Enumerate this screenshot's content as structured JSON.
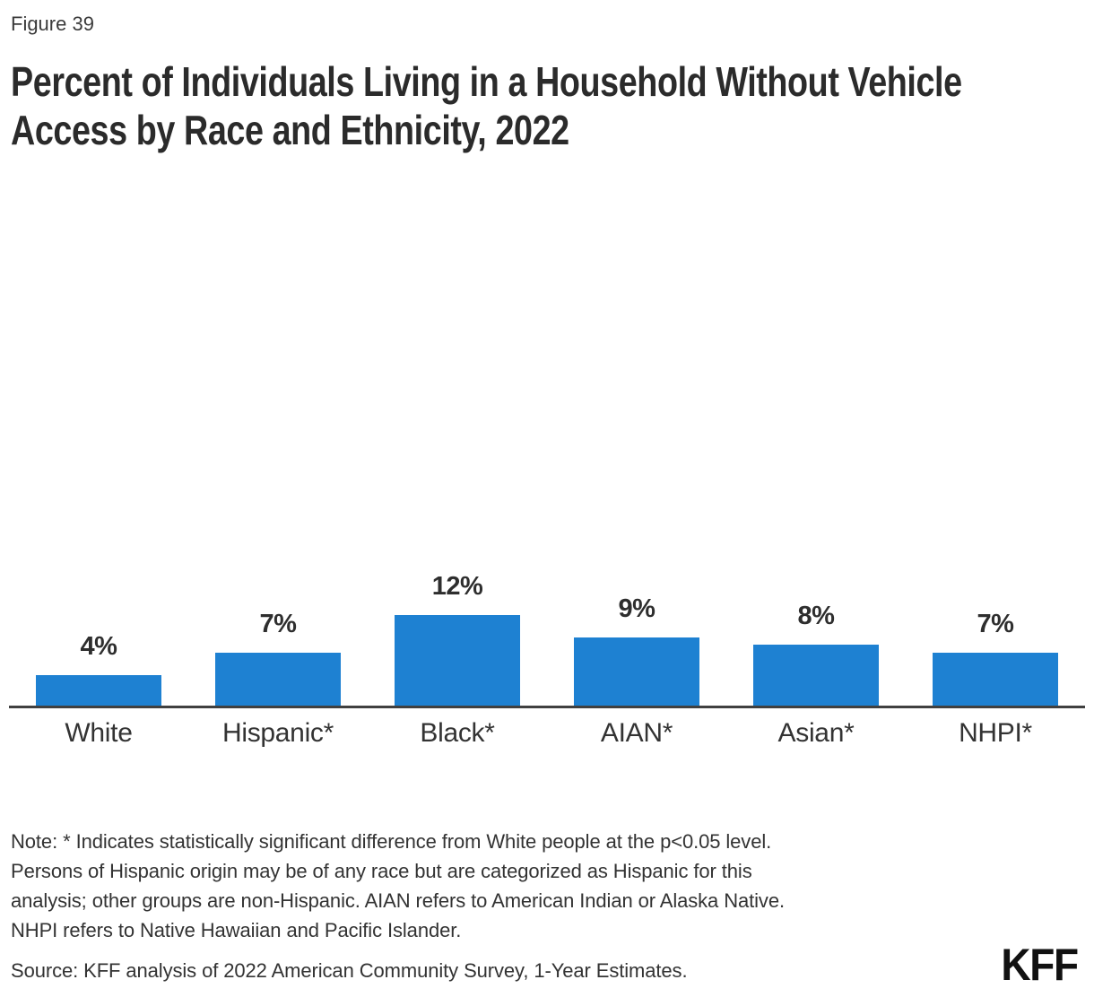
{
  "figure_label": "Figure 39",
  "title_lines": [
    "Percent of Individuals Living in a Household Without Vehicle",
    "Access by Race and Ethnicity, 2022"
  ],
  "note_lines": [
    "Note: * Indicates statistically significant difference from White people at the p<0.05 level.",
    "Persons of Hispanic origin may be of any race but are categorized as Hispanic for this",
    "analysis; other groups are non-Hispanic. AIAN refers to American Indian or Alaska Native.",
    "NHPI refers to Native Hawaiian and Pacific Islander."
  ],
  "source": "Source: KFF analysis of 2022 American Community Survey, 1-Year Estimates.",
  "logo_text": "KFF",
  "colors": {
    "bar": "#1E81D2",
    "axis": "#404040",
    "title_text": "#2B2B2B",
    "body_text": "#333333",
    "logo": "#111111",
    "background": "#FFFFFF"
  },
  "chart_data": {
    "type": "bar",
    "title": "Percent of Individuals Living in a Household Without Vehicle Access by Race and Ethnicity, 2022",
    "categories": [
      "White",
      "Hispanic*",
      "Black*",
      "AIAN*",
      "Asian*",
      "NHPI*"
    ],
    "values": [
      4,
      7,
      12,
      9,
      8,
      7
    ],
    "value_labels": [
      "4%",
      "7%",
      "12%",
      "9%",
      "8%",
      "7%"
    ],
    "unit": "percent",
    "xlabel": "",
    "ylabel": "",
    "ylim": [
      0,
      20
    ],
    "grid": false,
    "legend": false,
    "bar_color": "#1E81D2",
    "axis_color": "#404040",
    "value_label_position": "above-bar"
  }
}
